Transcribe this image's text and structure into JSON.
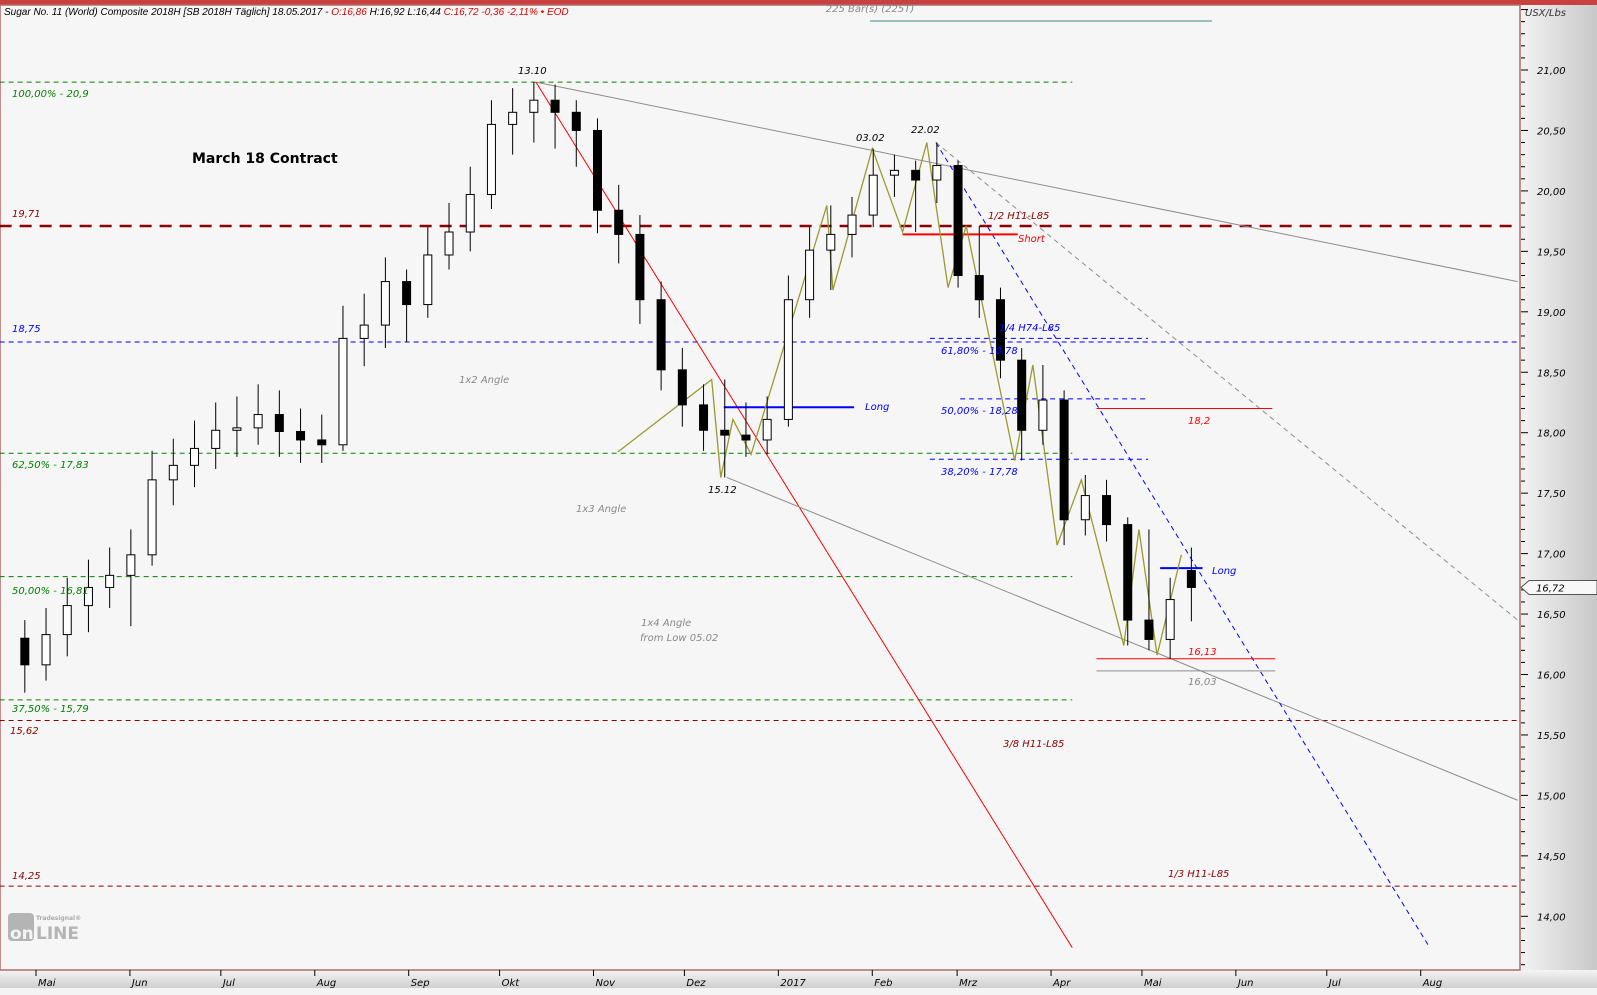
{
  "header": {
    "title": "Sugar No. 11 (World) Composite 2018H [SB 2018H Täglich] 18.05.2017 -",
    "open": "O:16,86",
    "high": "H:16,92",
    "low": "L:16,44",
    "close": "C:16,72 -0,36 -2,11%",
    "eod": "• EOD",
    "bars": "225 Bar(s) (225T)"
  },
  "colors": {
    "up": "#ffffff",
    "down": "#000000",
    "green": "#008000",
    "darkred": "#8b0000",
    "blue": "#0000ff",
    "red": "#ff0000",
    "gray": "#8c8c8c",
    "olive": "#9a9a30",
    "background": "#f6f6f6"
  },
  "logo": {
    "brand": "Tradesignal®",
    "text": "onLine"
  },
  "chart_data": {
    "type": "candlestick",
    "title": "March 18 Contract",
    "ylabel": "USX/Lbs",
    "ylim": [
      13.5,
      21.5
    ],
    "xlim": [
      "2016-04-19",
      "2017-09-02"
    ],
    "yticks": [
      "21,00",
      "20,50",
      "20,00",
      "19,50",
      "19,00",
      "18,50",
      "18,00",
      "17,50",
      "17,00",
      "16,50",
      "16,00",
      "15,50",
      "15,00",
      "14,50",
      "14,00"
    ],
    "ytick_values": [
      21,
      20.5,
      20,
      19.5,
      19,
      18.5,
      18,
      17.5,
      17,
      16.5,
      16,
      15.5,
      15,
      14.5,
      14
    ],
    "xticks": [
      {
        "date": "2016-05-01",
        "label": "Mai"
      },
      {
        "date": "2016-06-01",
        "label": "Jun"
      },
      {
        "date": "2016-07-01",
        "label": "Jul"
      },
      {
        "date": "2016-08-01",
        "label": "Aug"
      },
      {
        "date": "2016-09-01",
        "label": "Sep"
      },
      {
        "date": "2016-10-01",
        "label": "Okt"
      },
      {
        "date": "2016-11-01",
        "label": "Nov"
      },
      {
        "date": "2016-12-01",
        "label": "Dez"
      },
      {
        "date": "2017-01-01",
        "label": "2017"
      },
      {
        "date": "2017-02-01",
        "label": "Feb"
      },
      {
        "date": "2017-03-01",
        "label": "Mrz"
      },
      {
        "date": "2017-04-01",
        "label": "Apr"
      },
      {
        "date": "2017-05-01",
        "label": "Mai"
      },
      {
        "date": "2017-06-01",
        "label": "Jun"
      },
      {
        "date": "2017-07-01",
        "label": "Jul"
      },
      {
        "date": "2017-08-01",
        "label": "Aug"
      }
    ],
    "last_price": {
      "value": 16.72,
      "label": "16,72"
    },
    "candles": [
      [
        "2016-04-25",
        16.3,
        16.45,
        15.85,
        16.08
      ],
      [
        "2016-05-02",
        16.08,
        16.55,
        15.95,
        16.33
      ],
      [
        "2016-05-09",
        16.33,
        16.8,
        16.15,
        16.57
      ],
      [
        "2016-05-16",
        16.57,
        16.95,
        16.35,
        16.72
      ],
      [
        "2016-05-23",
        16.72,
        17.05,
        16.55,
        16.82
      ],
      [
        "2016-05-30",
        16.82,
        17.2,
        16.4,
        16.99
      ],
      [
        "2016-06-06",
        16.99,
        17.85,
        16.9,
        17.61
      ],
      [
        "2016-06-13",
        17.61,
        17.95,
        17.4,
        17.73
      ],
      [
        "2016-06-20",
        17.73,
        18.1,
        17.55,
        17.87
      ],
      [
        "2016-06-27",
        17.87,
        18.25,
        17.7,
        18.02
      ],
      [
        "2016-07-04",
        18.02,
        18.3,
        17.8,
        18.04
      ],
      [
        "2016-07-11",
        18.04,
        18.4,
        17.9,
        18.15
      ],
      [
        "2016-07-18",
        18.15,
        18.35,
        17.8,
        18.01
      ],
      [
        "2016-07-25",
        18.01,
        18.2,
        17.75,
        17.94
      ],
      [
        "2016-08-01",
        17.94,
        18.15,
        17.75,
        17.9
      ],
      [
        "2016-08-08",
        17.9,
        19.05,
        17.85,
        18.78
      ],
      [
        "2016-08-15",
        18.78,
        19.15,
        18.55,
        18.89
      ],
      [
        "2016-08-22",
        18.89,
        19.45,
        18.7,
        19.25
      ],
      [
        "2016-08-29",
        19.25,
        19.35,
        18.75,
        19.06
      ],
      [
        "2016-09-05",
        19.06,
        19.7,
        18.95,
        19.47
      ],
      [
        "2016-09-12",
        19.47,
        19.9,
        19.35,
        19.66
      ],
      [
        "2016-09-19",
        19.66,
        20.2,
        19.5,
        19.97
      ],
      [
        "2016-09-26",
        19.97,
        20.75,
        19.85,
        20.55
      ],
      [
        "2016-10-03",
        20.55,
        20.85,
        20.3,
        20.65
      ],
      [
        "2016-10-10",
        20.65,
        20.9,
        20.4,
        20.75
      ],
      [
        "2016-10-17",
        20.75,
        20.88,
        20.35,
        20.65
      ],
      [
        "2016-10-24",
        20.65,
        20.75,
        20.2,
        20.5
      ],
      [
        "2016-10-31",
        20.5,
        20.6,
        19.65,
        19.84
      ],
      [
        "2016-11-07",
        19.84,
        20.05,
        19.4,
        19.64
      ],
      [
        "2016-11-14",
        19.64,
        19.8,
        18.9,
        19.1
      ],
      [
        "2016-11-21",
        19.1,
        19.25,
        18.35,
        18.52
      ],
      [
        "2016-11-28",
        18.52,
        18.7,
        18.05,
        18.23
      ],
      [
        "2016-12-05",
        18.23,
        18.4,
        17.85,
        18.02
      ],
      [
        "2016-12-12",
        18.02,
        18.44,
        17.63,
        17.98
      ],
      [
        "2016-12-19",
        17.98,
        18.25,
        17.8,
        17.94
      ],
      [
        "2016-12-26",
        17.94,
        18.3,
        17.82,
        18.11
      ],
      [
        "2017-01-02",
        18.11,
        19.3,
        18.05,
        19.1
      ],
      [
        "2017-01-09",
        19.1,
        19.7,
        18.95,
        19.51
      ],
      [
        "2017-01-16",
        19.51,
        19.88,
        19.18,
        19.64
      ],
      [
        "2017-01-23",
        19.64,
        19.95,
        19.45,
        19.8
      ],
      [
        "2017-01-30",
        19.8,
        20.35,
        19.7,
        20.13
      ],
      [
        "2017-02-06",
        20.13,
        20.3,
        19.95,
        20.17
      ],
      [
        "2017-02-13",
        20.17,
        20.25,
        19.66,
        20.09
      ],
      [
        "2017-02-20",
        20.09,
        20.4,
        19.9,
        20.21
      ],
      [
        "2017-02-27",
        20.21,
        20.25,
        19.2,
        19.3
      ],
      [
        "2017-03-06",
        19.3,
        19.71,
        18.95,
        19.1
      ],
      [
        "2017-03-13",
        19.1,
        19.2,
        18.45,
        18.6
      ],
      [
        "2017-03-20",
        18.6,
        18.7,
        17.77,
        18.02
      ],
      [
        "2017-03-27",
        18.02,
        18.56,
        17.9,
        18.27
      ],
      [
        "2017-04-03",
        18.27,
        18.35,
        17.07,
        17.28
      ],
      [
        "2017-04-10",
        17.28,
        17.65,
        17.15,
        17.48
      ],
      [
        "2017-04-17",
        17.48,
        17.61,
        17.1,
        17.24
      ],
      [
        "2017-04-24",
        17.24,
        17.3,
        16.24,
        16.45
      ],
      [
        "2017-05-01",
        16.45,
        17.2,
        16.2,
        16.29
      ],
      [
        "2017-05-08",
        16.29,
        16.8,
        16.13,
        16.62
      ],
      [
        "2017-05-15",
        16.86,
        17.05,
        16.44,
        16.72
      ]
    ],
    "zigzag": [
      [
        "2016-11-09",
        17.84
      ],
      [
        "2016-12-10",
        18.44
      ],
      [
        "2016-12-13",
        17.63
      ],
      [
        "2016-12-17",
        18.11
      ],
      [
        "2016-12-23",
        17.82
      ],
      [
        "2017-01-17",
        19.88
      ],
      [
        "2017-01-19",
        19.18
      ],
      [
        "2017-02-01",
        20.35
      ],
      [
        "2017-02-11",
        19.66
      ],
      [
        "2017-02-19",
        20.4
      ],
      [
        "2017-02-26",
        19.2
      ],
      [
        "2017-03-04",
        19.71
      ],
      [
        "2017-03-20",
        17.77
      ],
      [
        "2017-03-26",
        18.56
      ],
      [
        "2017-04-03",
        17.07
      ],
      [
        "2017-04-11",
        17.61
      ],
      [
        "2017-04-25",
        16.24
      ],
      [
        "2017-04-30",
        17.2
      ],
      [
        "2017-05-06",
        16.16
      ],
      [
        "2017-05-14",
        16.99
      ]
    ],
    "lines": [
      {
        "name": "h11-l85-half",
        "from": [
          "2016-04-19",
          19.71
        ],
        "to": [
          "2017-09-02",
          19.71
        ],
        "color": "#8b0000",
        "style": "thickdash"
      },
      {
        "name": "level-18-75",
        "from": [
          "2016-04-19",
          18.75
        ],
        "to": [
          "2017-09-02",
          18.75
        ],
        "color": "#0000ff",
        "style": "dash"
      },
      {
        "name": "h11-l85-3-8",
        "from": [
          "2016-04-19",
          15.62
        ],
        "to": [
          "2017-09-02",
          15.62
        ],
        "color": "#8b0000",
        "style": "dash"
      },
      {
        "name": "h11-l85-1-3",
        "from": [
          "2016-04-19",
          14.25
        ],
        "to": [
          "2017-09-02",
          14.25
        ],
        "color": "#8b0000",
        "style": "dash"
      },
      {
        "name": "fib-100",
        "from": [
          "2016-04-19",
          20.9
        ],
        "to": [
          "2017-04-08",
          20.9
        ],
        "color": "#008000",
        "style": "dash"
      },
      {
        "name": "fib-62-5",
        "from": [
          "2016-04-19",
          17.83
        ],
        "to": [
          "2017-04-08",
          17.83
        ],
        "color": "#008000",
        "style": "dash"
      },
      {
        "name": "fib-50",
        "from": [
          "2016-04-19",
          16.81
        ],
        "to": [
          "2017-04-08",
          16.81
        ],
        "color": "#008000",
        "style": "dash"
      },
      {
        "name": "fib-37-5",
        "from": [
          "2016-04-19",
          15.79
        ],
        "to": [
          "2017-04-08",
          15.79
        ],
        "color": "#008000",
        "style": "dash"
      },
      {
        "name": "fib-61-8-blue",
        "from": [
          "2017-02-20",
          18.78
        ],
        "to": [
          "2017-05-03",
          18.78
        ],
        "color": "#0000ff",
        "style": "dash"
      },
      {
        "name": "fib-50-blue",
        "from": [
          "2017-03-02",
          18.28
        ],
        "to": [
          "2017-05-03",
          18.28
        ],
        "color": "#0000ff",
        "style": "dash"
      },
      {
        "name": "fib-38-2-blue",
        "from": [
          "2017-02-20",
          17.78
        ],
        "to": [
          "2017-05-03",
          17.78
        ],
        "color": "#0000ff",
        "style": "dash"
      },
      {
        "name": "angle-1x2",
        "from": [
          "2016-10-13",
          20.9
        ],
        "to": [
          "2017-09-02",
          19.25
        ],
        "color": "#8c8c8c",
        "style": "solid"
      },
      {
        "name": "angle-red",
        "from": [
          "2016-10-13",
          20.9
        ],
        "to": [
          "2017-04-08",
          13.74
        ],
        "color": "#ff0000",
        "style": "solid"
      },
      {
        "name": "angle-1x4",
        "from": [
          "2016-12-15",
          17.63
        ],
        "to": [
          "2017-09-02",
          14.96
        ],
        "color": "#8c8c8c",
        "style": "solid"
      },
      {
        "name": "trend-blue",
        "from": [
          "2017-02-22",
          20.4
        ],
        "to": [
          "2017-08-04",
          13.74
        ],
        "color": "#0000ff",
        "style": "dash"
      },
      {
        "name": "trend-gray",
        "from": [
          "2017-02-22",
          20.4
        ],
        "to": [
          "2017-09-02",
          16.45
        ],
        "color": "#8c8c8c",
        "style": "dash"
      },
      {
        "name": "short-line",
        "from": [
          "2017-02-11",
          19.64
        ],
        "to": [
          "2017-03-21",
          19.64
        ],
        "color": "#ff0000",
        "style": "thick"
      },
      {
        "name": "target-18-2",
        "from": [
          "2017-04-16",
          18.2
        ],
        "to": [
          "2017-06-13",
          18.2
        ],
        "color": "#ff0000",
        "style": "solid"
      },
      {
        "name": "long-line-1",
        "from": [
          "2016-12-14",
          18.21
        ],
        "to": [
          "2017-01-26",
          18.21
        ],
        "color": "#0000ff",
        "style": "thick"
      },
      {
        "name": "long-line-2",
        "from": [
          "2017-05-07",
          16.88
        ],
        "to": [
          "2017-05-21",
          16.88
        ],
        "color": "#0000ff",
        "style": "thick"
      },
      {
        "name": "support-16-13",
        "from": [
          "2017-04-16",
          16.13
        ],
        "to": [
          "2017-06-14",
          16.13
        ],
        "color": "#ff0000",
        "style": "solid"
      },
      {
        "name": "support-16-03",
        "from": [
          "2017-04-16",
          16.03
        ],
        "to": [
          "2017-06-14",
          16.03
        ],
        "color": "#8c8c8c",
        "style": "solid"
      }
    ],
    "annotations": {
      "fib100": "100,00% - 20,9",
      "fib625": "62,50% - 17,83",
      "fib50": "50,00% - 16,81",
      "fib375": "37,50% - 15,79",
      "lvl1971": "19,71",
      "lvl1875": "18,75",
      "lvl1562": "15,62",
      "lvl1425": "14,25",
      "peak1": "13.10",
      "peak2": "03.02",
      "peak3": "22.02",
      "low1": "15.12",
      "angle12": "1x2 Angle",
      "angle13": "1x3 Angle",
      "angle14": "1x4 Angle",
      "angle14b": "from Low 05.02",
      "half": "1/2 H11-L85",
      "short": "Short",
      "quarter": "1/4 H74-L85",
      "bfib618": "61,80% - 18,78",
      "bfib50": "50,00% - 18,28",
      "bfib382": "38,20% - 17,78",
      "t182": "18,2",
      "long1": "Long",
      "long2": "Long",
      "s1613": "16,13",
      "s1603": "16,03",
      "threeeighths": "3/8 H11-L85",
      "onethird": "1/3 H11-L85"
    }
  }
}
